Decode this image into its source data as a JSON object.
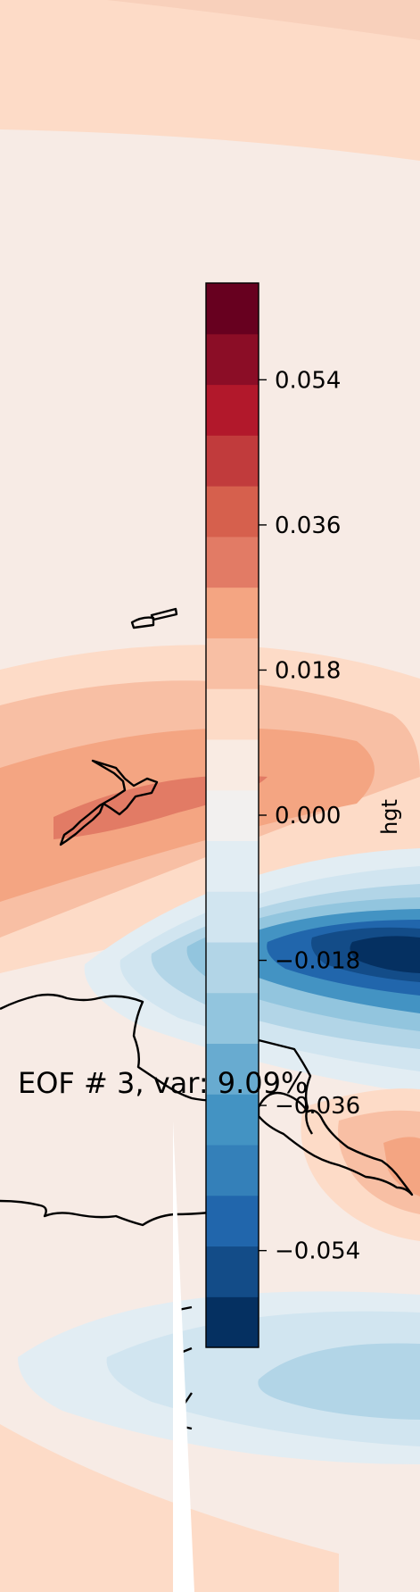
{
  "figure": {
    "title": "EOF # 3, var: 9.09%"
  },
  "colorbar": {
    "label": "hgt",
    "range": [
      -0.066,
      0.066
    ],
    "ticks": [
      "0.054",
      "0.036",
      "0.018",
      "0.000",
      "−0.018",
      "−0.036",
      "−0.054"
    ],
    "tick_values": [
      0.054,
      0.036,
      0.018,
      0.0,
      -0.018,
      -0.036,
      -0.054
    ],
    "colors": [
      "#053061",
      "#134c88",
      "#2166ac",
      "#3480b9",
      "#4393c3",
      "#68abd0",
      "#92c5de",
      "#b2d5e7",
      "#d1e5f0",
      "#e2edf3",
      "#f2f0ef",
      "#f9ebe3",
      "#fddbc7",
      "#f8bfa4",
      "#f4a582",
      "#e27b65",
      "#d6604d",
      "#c13b3c",
      "#b2182b",
      "#8b0d26",
      "#67001f"
    ]
  },
  "map": {
    "projection": "plate-carree (regional)",
    "regions_visible": [
      "New Zealand",
      "Australia",
      "New Guinea",
      "Antarctica (partial)"
    ]
  }
}
